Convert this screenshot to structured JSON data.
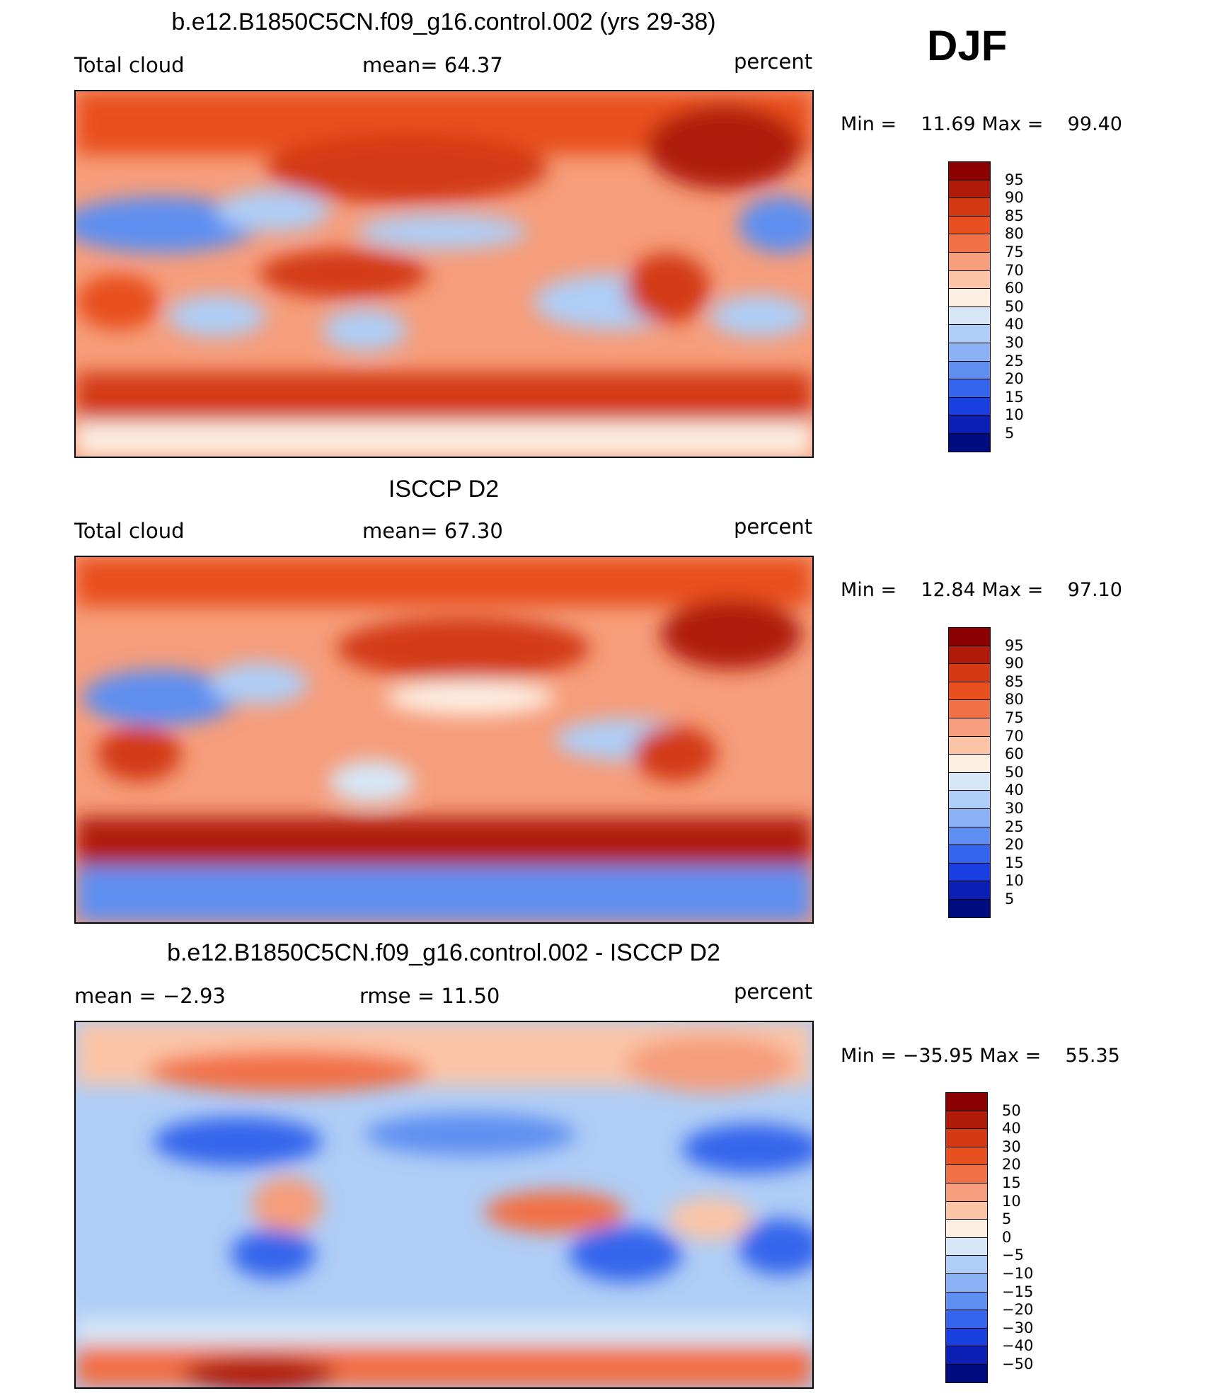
{
  "season": "DJF",
  "units": "percent",
  "panels": [
    {
      "id": "model",
      "title": "b.e12.B1850C5CN.f09_g16.control.002 (yrs 29-38)",
      "left_label": "Total cloud",
      "center_label": "mean=   64.37",
      "right_label": "percent",
      "minmax": "Min =    11.69 Max =    99.40"
    },
    {
      "id": "obs",
      "title": "ISCCP D2",
      "left_label": "Total cloud",
      "center_label": "mean=   67.30",
      "right_label": "percent",
      "minmax": "Min =    12.84 Max =    97.10"
    },
    {
      "id": "diff",
      "title": "b.e12.B1850C5CN.f09_g16.control.002 - ISCCP D2",
      "left_label": "mean =    −2.93",
      "center_label": "rmse =    11.50",
      "right_label": "percent",
      "minmax": "Min = −35.95 Max =    55.35"
    }
  ],
  "colorbars": {
    "field": {
      "labels": [
        "95",
        "90",
        "85",
        "80",
        "75",
        "70",
        "60",
        "50",
        "40",
        "30",
        "25",
        "20",
        "15",
        "10",
        "5"
      ],
      "colors": [
        "#8b0000",
        "#b01a08",
        "#d33a14",
        "#e8501f",
        "#f27045",
        "#f69d7b",
        "#fbc4a6",
        "#fdeee2",
        "#d6e6f7",
        "#afcdf6",
        "#8ab2f4",
        "#5e8ff1",
        "#3565ec",
        "#1a3fe0",
        "#0b1fb5",
        "#000c80"
      ]
    },
    "diff": {
      "labels": [
        "50",
        "40",
        "30",
        "20",
        "15",
        "10",
        "5",
        "0",
        "−5",
        "−10",
        "−15",
        "−20",
        "−30",
        "−40",
        "−50"
      ],
      "colors": [
        "#8b0000",
        "#b01a08",
        "#d33a14",
        "#e8501f",
        "#f27045",
        "#f69d7b",
        "#fbc4a6",
        "#fdeee2",
        "#d6e6f7",
        "#afcdf6",
        "#8ab2f4",
        "#5e8ff1",
        "#3565ec",
        "#1a3fe0",
        "#0b1fb5",
        "#000c80"
      ]
    }
  }
}
